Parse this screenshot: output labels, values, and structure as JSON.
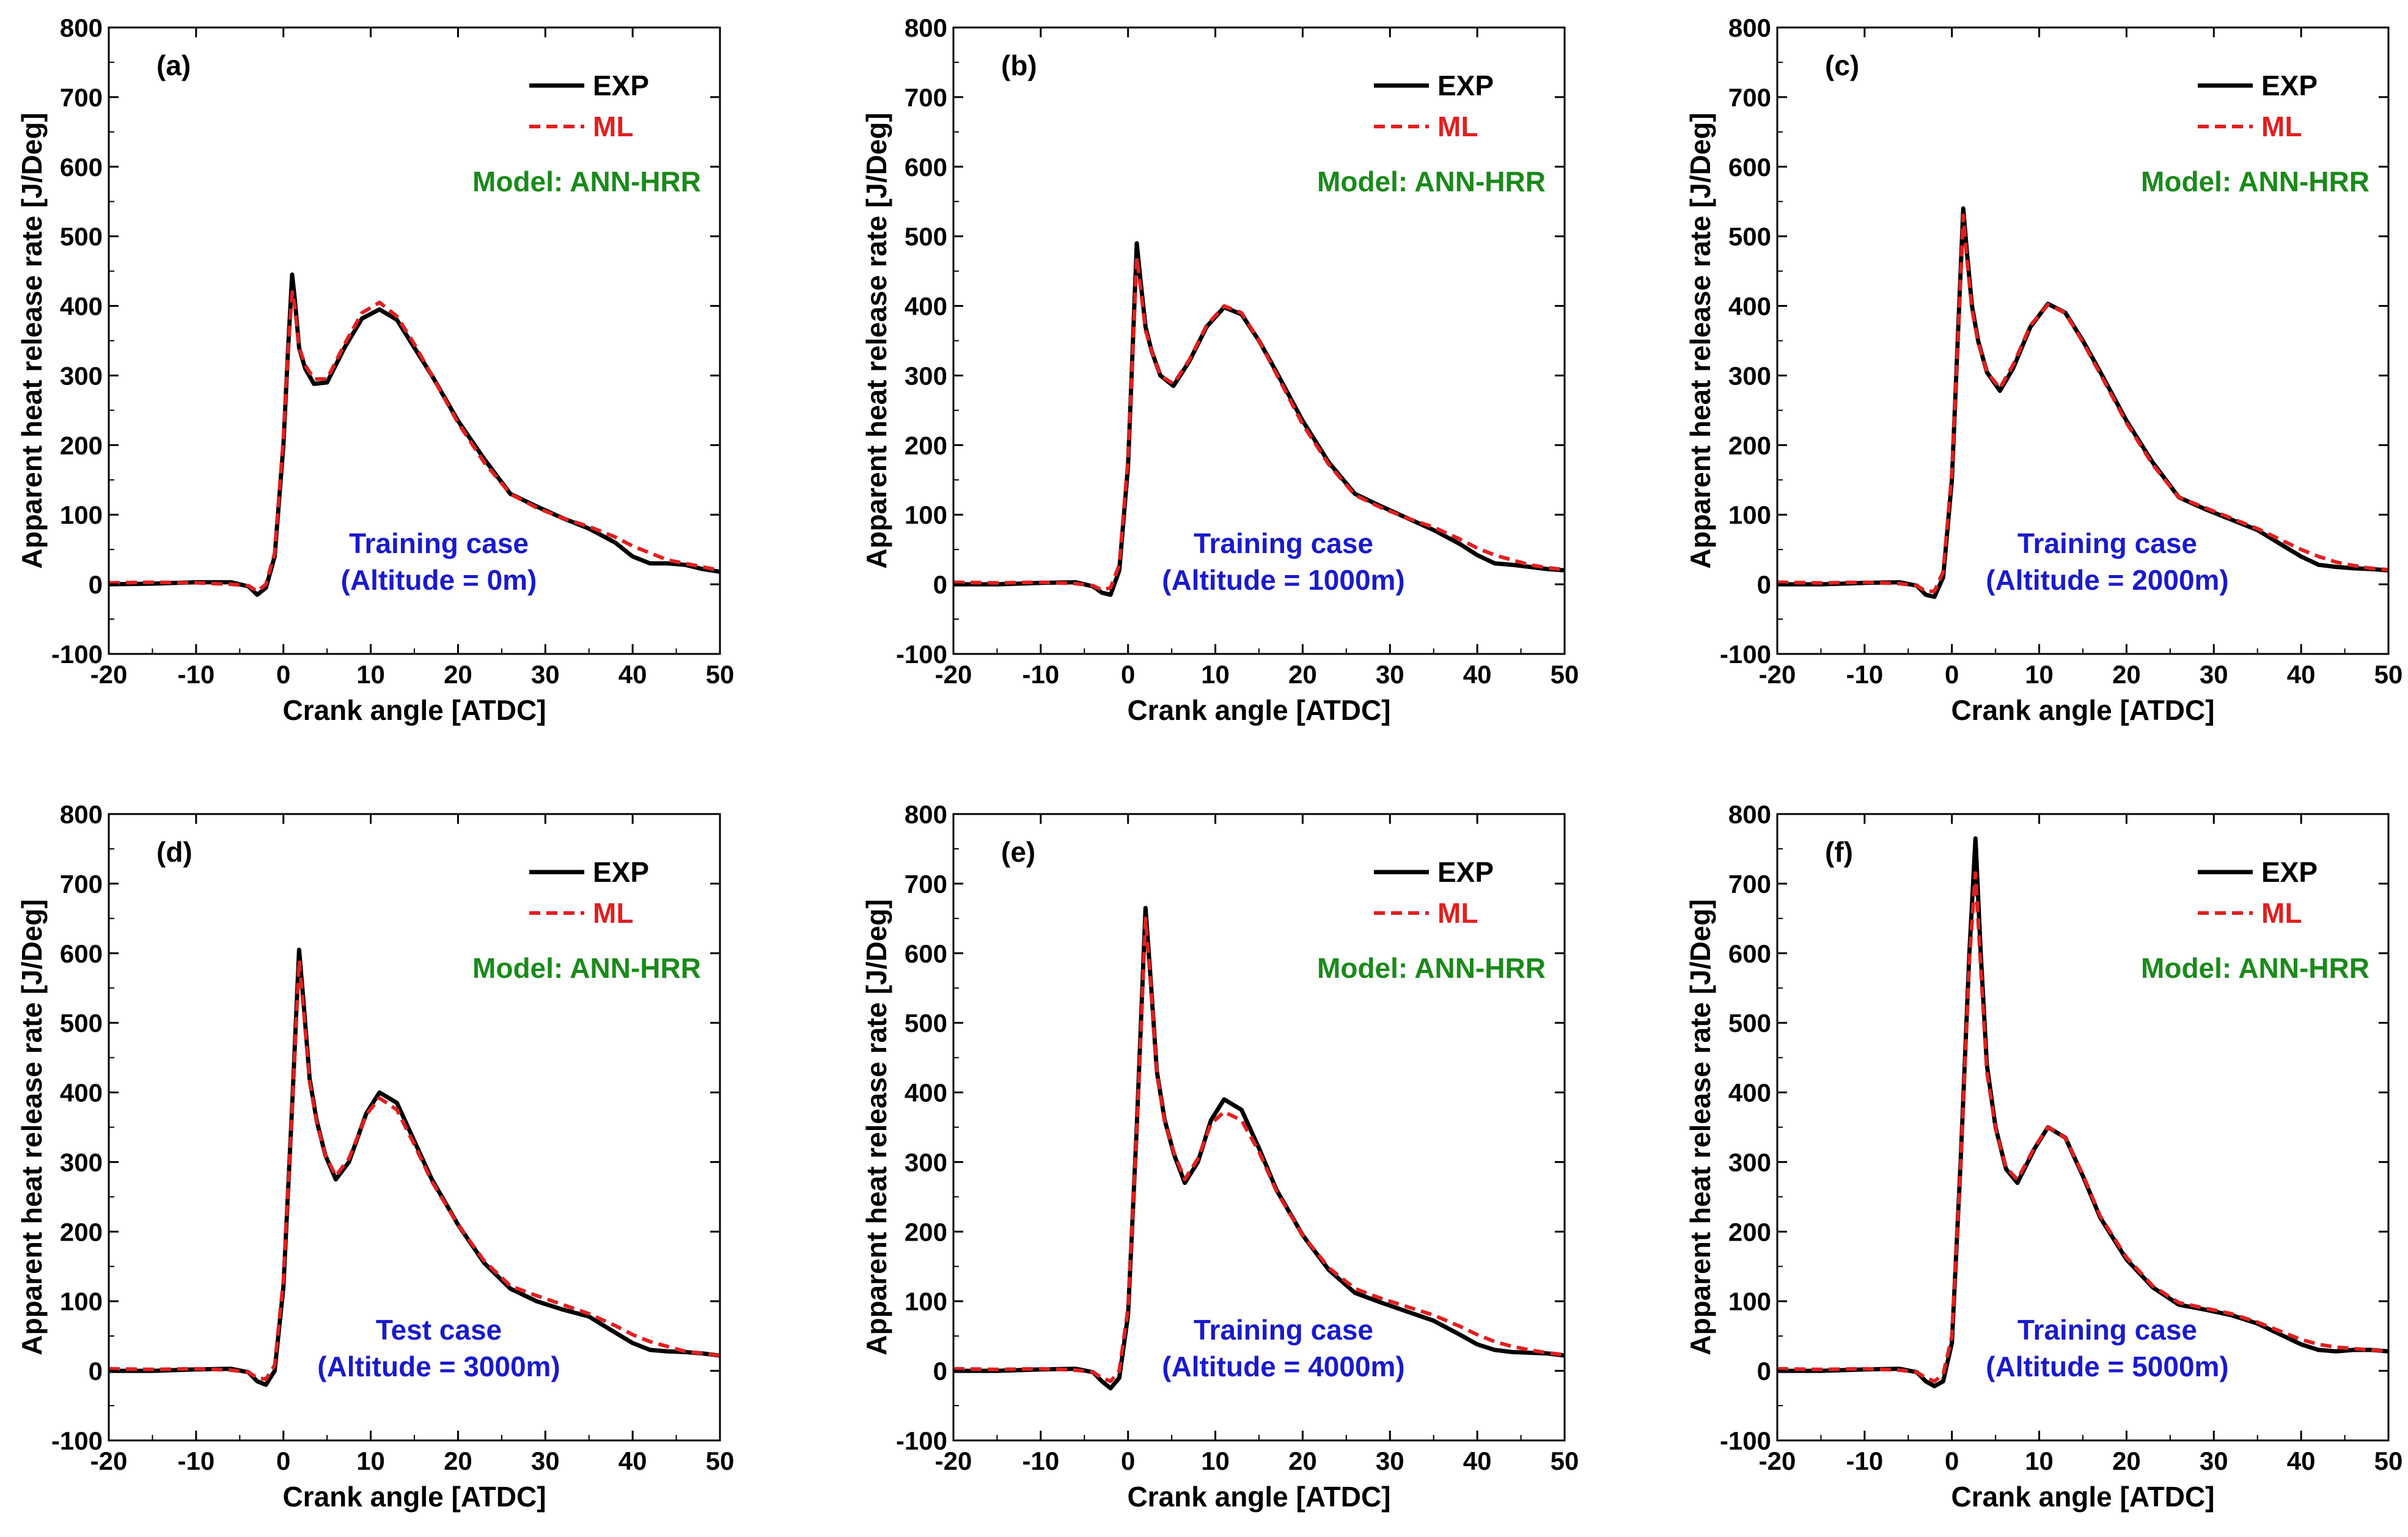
{
  "figure": {
    "colors": {
      "exp": "#000000",
      "ml": "#e02020",
      "model_text": "#1a8a1a",
      "case_text": "#1a1acc"
    }
  },
  "chart_data": [
    {
      "type": "line",
      "panel_label": "(a)",
      "xlabel": "Crank angle [ATDC]",
      "ylabel": "Apparent heat release rate [J/Deg]",
      "xlim": [
        -20,
        50
      ],
      "ylim": [
        -100,
        800
      ],
      "xticks": [
        -20,
        -10,
        0,
        10,
        20,
        30,
        40,
        50
      ],
      "yticks": [
        -100,
        0,
        100,
        200,
        300,
        400,
        500,
        600,
        700,
        800
      ],
      "legend": [
        "EXP",
        "ML"
      ],
      "model_text": "Model: ANN-HRR",
      "case_line1": "Training case",
      "case_line2": "(Altitude = 0m)",
      "series": [
        {
          "name": "EXP",
          "style": "solid",
          "x": [
            -20,
            -15,
            -10,
            -6,
            -4,
            -3,
            -2,
            -1,
            0,
            0.5,
            1,
            1.3,
            1.8,
            2.5,
            3.5,
            5,
            7,
            9,
            11,
            13,
            15,
            17,
            20,
            23,
            26,
            29,
            32,
            35,
            38,
            40,
            42,
            44,
            46,
            48,
            50
          ],
          "y": [
            0,
            1,
            3,
            3,
            -3,
            -15,
            -5,
            40,
            200,
            330,
            445,
            410,
            340,
            310,
            288,
            290,
            340,
            382,
            395,
            380,
            340,
            300,
            235,
            180,
            130,
            112,
            95,
            80,
            60,
            40,
            30,
            30,
            28,
            22,
            18
          ]
        },
        {
          "name": "ML",
          "style": "dashed",
          "x": [
            -20,
            -15,
            -10,
            -6,
            -4,
            -3,
            -2,
            -1,
            0,
            0.5,
            1,
            1.3,
            1.8,
            2.5,
            3.5,
            5,
            7,
            9,
            11,
            13,
            15,
            17,
            20,
            23,
            26,
            29,
            32,
            35,
            38,
            40,
            42,
            44,
            46,
            48,
            50
          ],
          "y": [
            2,
            3,
            2,
            0,
            -2,
            -10,
            0,
            45,
            210,
            330,
            420,
            400,
            340,
            315,
            295,
            295,
            345,
            390,
            405,
            385,
            345,
            300,
            232,
            175,
            130,
            110,
            95,
            83,
            68,
            55,
            45,
            35,
            30,
            25,
            20
          ]
        }
      ]
    },
    {
      "type": "line",
      "panel_label": "(b)",
      "xlabel": "Crank angle [ATDC]",
      "ylabel": "Apparent heat release rate [J/Deg]",
      "xlim": [
        -20,
        50
      ],
      "ylim": [
        -100,
        800
      ],
      "xticks": [
        -20,
        -10,
        0,
        10,
        20,
        30,
        40,
        50
      ],
      "yticks": [
        -100,
        0,
        100,
        200,
        300,
        400,
        500,
        600,
        700,
        800
      ],
      "legend": [
        "EXP",
        "ML"
      ],
      "model_text": "Model: ANN-HRR",
      "case_line1": "Training case",
      "case_line2": "(Altitude = 1000m)",
      "series": [
        {
          "name": "EXP",
          "style": "solid",
          "x": [
            -20,
            -15,
            -10,
            -6,
            -4,
            -3,
            -2,
            -1,
            0,
            0.5,
            1,
            1.4,
            2,
            2.7,
            3.7,
            5.2,
            7,
            9,
            11,
            13,
            15,
            17,
            20,
            23,
            26,
            29,
            32,
            35,
            38,
            40,
            42,
            44,
            46,
            48,
            50
          ],
          "y": [
            0,
            0,
            2,
            3,
            -3,
            -12,
            -15,
            20,
            170,
            330,
            490,
            440,
            370,
            335,
            300,
            285,
            320,
            370,
            398,
            388,
            350,
            305,
            235,
            175,
            130,
            112,
            95,
            78,
            58,
            42,
            30,
            28,
            25,
            22,
            20
          ]
        },
        {
          "name": "ML",
          "style": "dashed",
          "x": [
            -20,
            -15,
            -10,
            -6,
            -4,
            -3,
            -2,
            -1,
            0,
            0.5,
            1,
            1.4,
            2,
            2.7,
            3.7,
            5.2,
            7,
            9,
            11,
            13,
            15,
            17,
            20,
            23,
            26,
            29,
            32,
            35,
            38,
            40,
            42,
            44,
            46,
            48,
            50
          ],
          "y": [
            3,
            2,
            3,
            1,
            -2,
            -8,
            -5,
            28,
            180,
            325,
            470,
            430,
            365,
            335,
            300,
            288,
            322,
            372,
            400,
            390,
            350,
            302,
            230,
            172,
            128,
            110,
            95,
            82,
            65,
            52,
            42,
            35,
            28,
            24,
            21
          ]
        }
      ]
    },
    {
      "type": "line",
      "panel_label": "(c)",
      "xlabel": "Crank angle [ATDC]",
      "ylabel": "Apparent heat release rate [J/Deg]",
      "xlim": [
        -20,
        50
      ],
      "ylim": [
        -100,
        800
      ],
      "xticks": [
        -20,
        -10,
        0,
        10,
        20,
        30,
        40,
        50
      ],
      "yticks": [
        -100,
        0,
        100,
        200,
        300,
        400,
        500,
        600,
        700,
        800
      ],
      "legend": [
        "EXP",
        "ML"
      ],
      "model_text": "Model: ANN-HRR",
      "case_line1": "Training case",
      "case_line2": "(Altitude = 2000m)",
      "series": [
        {
          "name": "EXP",
          "style": "solid",
          "x": [
            -20,
            -15,
            -10,
            -6,
            -4,
            -3,
            -2,
            -1,
            0,
            0.7,
            1.3,
            1.7,
            2.3,
            3,
            4,
            5.5,
            7,
            9,
            11,
            13,
            15,
            17,
            20,
            23,
            26,
            29,
            32,
            35,
            38,
            40,
            42,
            44,
            46,
            48,
            50
          ],
          "y": [
            0,
            0,
            2,
            3,
            -2,
            -15,
            -18,
            10,
            150,
            360,
            540,
            480,
            400,
            350,
            305,
            278,
            310,
            370,
            403,
            390,
            350,
            305,
            235,
            175,
            125,
            108,
            93,
            78,
            55,
            40,
            28,
            25,
            23,
            22,
            20
          ]
        },
        {
          "name": "ML",
          "style": "dashed",
          "x": [
            -20,
            -15,
            -10,
            -6,
            -4,
            -3,
            -2,
            -1,
            0,
            0.7,
            1.3,
            1.7,
            2.3,
            3,
            4,
            5.5,
            7,
            9,
            11,
            13,
            15,
            17,
            20,
            23,
            26,
            29,
            32,
            35,
            38,
            40,
            42,
            44,
            46,
            48,
            50
          ],
          "y": [
            3,
            2,
            3,
            1,
            -2,
            -10,
            -10,
            18,
            160,
            355,
            530,
            470,
            395,
            348,
            305,
            282,
            315,
            372,
            402,
            390,
            348,
            302,
            232,
            172,
            125,
            110,
            95,
            80,
            62,
            50,
            40,
            32,
            27,
            23,
            21
          ]
        }
      ]
    },
    {
      "type": "line",
      "panel_label": "(d)",
      "xlabel": "Crank angle [ATDC]",
      "ylabel": "Apparent heat release rate [J/Deg]",
      "xlim": [
        -20,
        50
      ],
      "ylim": [
        -100,
        800
      ],
      "xticks": [
        -20,
        -10,
        0,
        10,
        20,
        30,
        40,
        50
      ],
      "yticks": [
        -100,
        0,
        100,
        200,
        300,
        400,
        500,
        600,
        700,
        800
      ],
      "legend": [
        "EXP",
        "ML"
      ],
      "model_text": "Model: ANN-HRR",
      "case_line1": "Test case",
      "case_line2": "(Altitude = 3000m)",
      "series": [
        {
          "name": "EXP",
          "style": "solid",
          "x": [
            -20,
            -15,
            -10,
            -6,
            -4,
            -3,
            -2,
            -1,
            0,
            1,
            1.8,
            2.3,
            3,
            3.8,
            4.8,
            6,
            7.5,
            9.5,
            11,
            13,
            15,
            17,
            20,
            23,
            26,
            29,
            32,
            35,
            38,
            40,
            42,
            44,
            46,
            48,
            50
          ],
          "y": [
            0,
            0,
            2,
            3,
            -2,
            -15,
            -20,
            0,
            120,
            380,
            605,
            530,
            420,
            360,
            310,
            275,
            300,
            370,
            400,
            385,
            330,
            275,
            210,
            155,
            118,
            100,
            88,
            78,
            55,
            40,
            30,
            28,
            27,
            25,
            22
          ]
        },
        {
          "name": "ML",
          "style": "dashed",
          "x": [
            -20,
            -15,
            -10,
            -6,
            -4,
            -3,
            -2,
            -1,
            0,
            1,
            1.8,
            2.3,
            3,
            3.8,
            4.8,
            6,
            7.5,
            9.5,
            11,
            13,
            15,
            17,
            20,
            23,
            26,
            29,
            32,
            35,
            38,
            40,
            42,
            44,
            46,
            48,
            50
          ],
          "y": [
            3,
            2,
            3,
            1,
            -2,
            -10,
            -12,
            8,
            130,
            375,
            590,
            520,
            415,
            358,
            310,
            280,
            305,
            368,
            392,
            375,
            325,
            272,
            210,
            158,
            122,
            108,
            95,
            82,
            65,
            52,
            42,
            35,
            28,
            25,
            22
          ]
        }
      ]
    },
    {
      "type": "line",
      "panel_label": "(e)",
      "xlabel": "Crank angle [ATDC]",
      "ylabel": "Apparent heat release rate [J/Deg]",
      "xlim": [
        -20,
        50
      ],
      "ylim": [
        -100,
        800
      ],
      "xticks": [
        -20,
        -10,
        0,
        10,
        20,
        30,
        40,
        50
      ],
      "yticks": [
        -100,
        0,
        100,
        200,
        300,
        400,
        500,
        600,
        700,
        800
      ],
      "legend": [
        "EXP",
        "ML"
      ],
      "model_text": "Model: ANN-HRR",
      "case_line1": "Training case",
      "case_line2": "(Altitude = 4000m)",
      "series": [
        {
          "name": "EXP",
          "style": "solid",
          "x": [
            -20,
            -15,
            -10,
            -6,
            -4,
            -3,
            -2,
            -1,
            0,
            1,
            2,
            2.6,
            3.3,
            4.2,
            5.3,
            6.5,
            8,
            9.5,
            11,
            13,
            15,
            17,
            20,
            23,
            26,
            29,
            32,
            35,
            38,
            40,
            42,
            44,
            46,
            48,
            50
          ],
          "y": [
            0,
            0,
            2,
            3,
            -2,
            -15,
            -25,
            -10,
            80,
            350,
            665,
            560,
            430,
            360,
            310,
            270,
            300,
            360,
            390,
            375,
            320,
            260,
            195,
            145,
            112,
            98,
            85,
            72,
            52,
            38,
            30,
            27,
            26,
            25,
            22
          ]
        },
        {
          "name": "ML",
          "style": "dashed",
          "x": [
            -20,
            -15,
            -10,
            -6,
            -4,
            -3,
            -2,
            -1,
            0,
            1,
            2,
            2.6,
            3.3,
            4.2,
            5.3,
            6.5,
            8,
            9.5,
            11,
            13,
            15,
            17,
            20,
            23,
            26,
            29,
            32,
            35,
            38,
            40,
            42,
            44,
            46,
            48,
            50
          ],
          "y": [
            3,
            2,
            3,
            1,
            -2,
            -10,
            -15,
            0,
            90,
            345,
            650,
            555,
            428,
            358,
            312,
            275,
            305,
            355,
            372,
            360,
            315,
            258,
            195,
            148,
            118,
            104,
            92,
            80,
            64,
            52,
            42,
            35,
            30,
            26,
            23
          ]
        }
      ]
    },
    {
      "type": "line",
      "panel_label": "(f)",
      "xlabel": "Crank angle [ATDC]",
      "ylabel": "Apparent heat release rate [J/Deg]",
      "xlim": [
        -20,
        50
      ],
      "ylim": [
        -100,
        800
      ],
      "xticks": [
        -20,
        -10,
        0,
        10,
        20,
        30,
        40,
        50
      ],
      "yticks": [
        -100,
        0,
        100,
        200,
        300,
        400,
        500,
        600,
        700,
        800
      ],
      "legend": [
        "EXP",
        "ML"
      ],
      "model_text": "Model: ANN-HRR",
      "case_line1": "Training case",
      "case_line2": "(Altitude = 5000m)",
      "series": [
        {
          "name": "EXP",
          "style": "solid",
          "x": [
            -20,
            -15,
            -10,
            -6,
            -4,
            -3,
            -2,
            -1,
            0,
            1,
            2,
            2.7,
            3.3,
            4,
            5,
            6.2,
            7.5,
            9.5,
            11,
            13,
            15,
            17,
            20,
            23,
            26,
            29,
            32,
            35,
            38,
            40,
            42,
            44,
            46,
            48,
            50
          ],
          "y": [
            0,
            0,
            2,
            3,
            -2,
            -15,
            -22,
            -15,
            40,
            300,
            600,
            765,
            600,
            440,
            350,
            290,
            270,
            320,
            350,
            335,
            280,
            220,
            160,
            120,
            95,
            88,
            80,
            68,
            50,
            38,
            30,
            28,
            30,
            30,
            28
          ]
        },
        {
          "name": "ML",
          "style": "dashed",
          "x": [
            -20,
            -15,
            -10,
            -6,
            -4,
            -3,
            -2,
            -1,
            0,
            1,
            2,
            2.7,
            3.3,
            4,
            5,
            6.2,
            7.5,
            9.5,
            11,
            13,
            15,
            17,
            20,
            23,
            26,
            29,
            32,
            35,
            38,
            40,
            42,
            44,
            46,
            48,
            50
          ],
          "y": [
            3,
            2,
            3,
            1,
            -2,
            -10,
            -15,
            -5,
            50,
            295,
            590,
            715,
            580,
            430,
            348,
            292,
            275,
            322,
            350,
            335,
            282,
            222,
            163,
            122,
            98,
            90,
            82,
            70,
            55,
            45,
            38,
            34,
            32,
            30,
            28
          ]
        }
      ]
    }
  ]
}
